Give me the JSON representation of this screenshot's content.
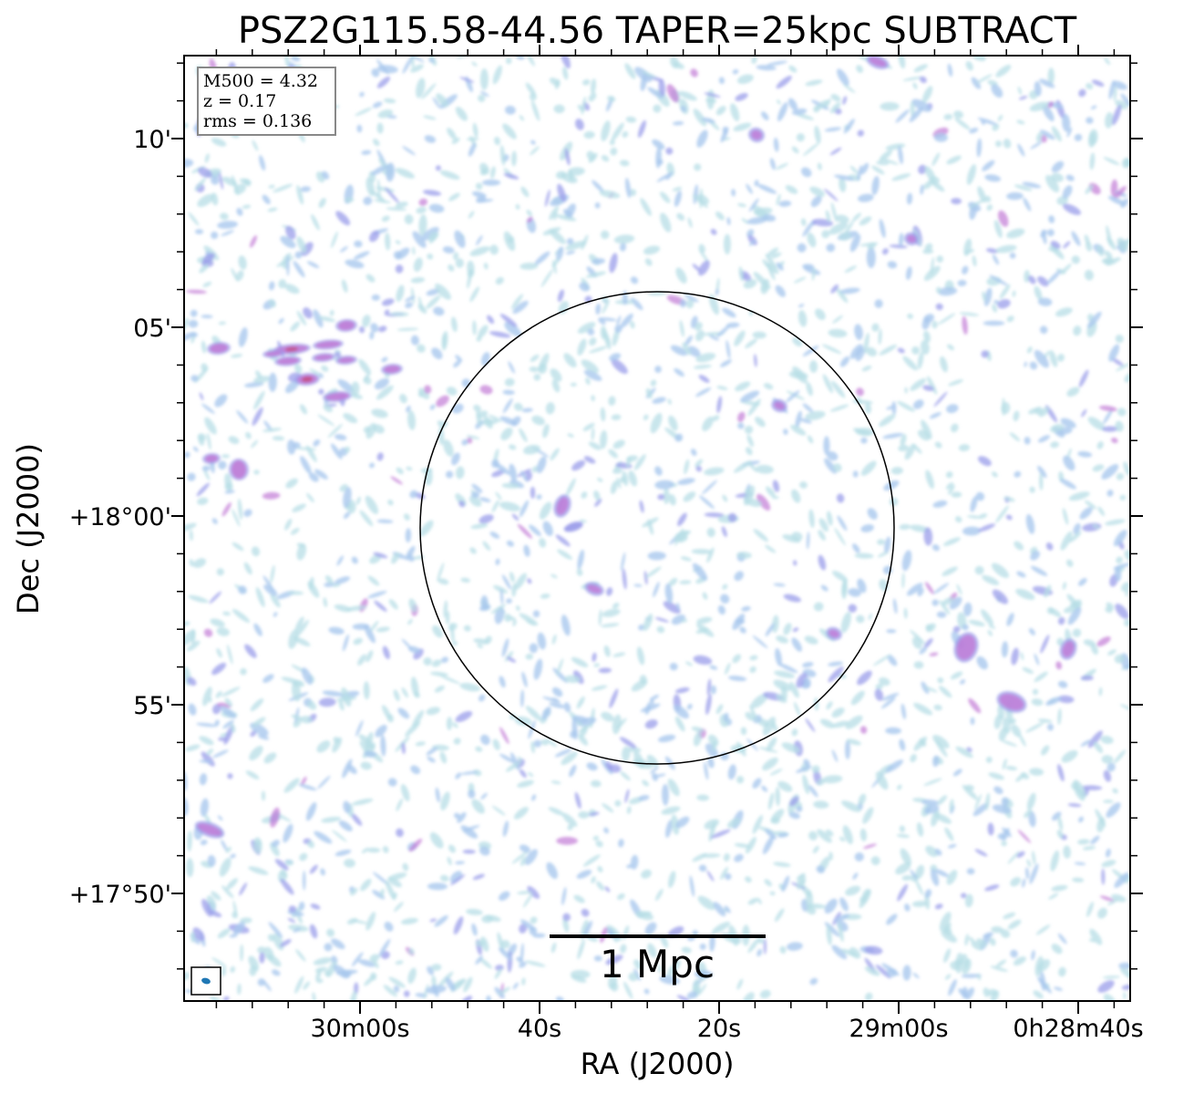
{
  "chart_data": {
    "type": "heatmap",
    "title": "PSZ2G115.58-44.56 TAPER=25kpc SUBTRACT",
    "xlabel": "RA (J2000)",
    "ylabel": "Dec (J2000)",
    "x_ticks": [
      "30m00s",
      "40s",
      "20s",
      "29m00s",
      "0h28m40s"
    ],
    "y_ticks": [
      "10'",
      "05'",
      "+18°00'",
      "55'",
      "+17°50'"
    ],
    "info_box": [
      "M500 = 4.32",
      "z = 0.17",
      "rms = 0.136"
    ],
    "scalebar_label": "1 Mpc",
    "colormap": [
      "#b7dde6",
      "#a9c8ee",
      "#9a9cea",
      "#c27ad6",
      "#c24f86"
    ],
    "circle": "R500 region",
    "bright_source": "upper-left, near 05' dec"
  }
}
